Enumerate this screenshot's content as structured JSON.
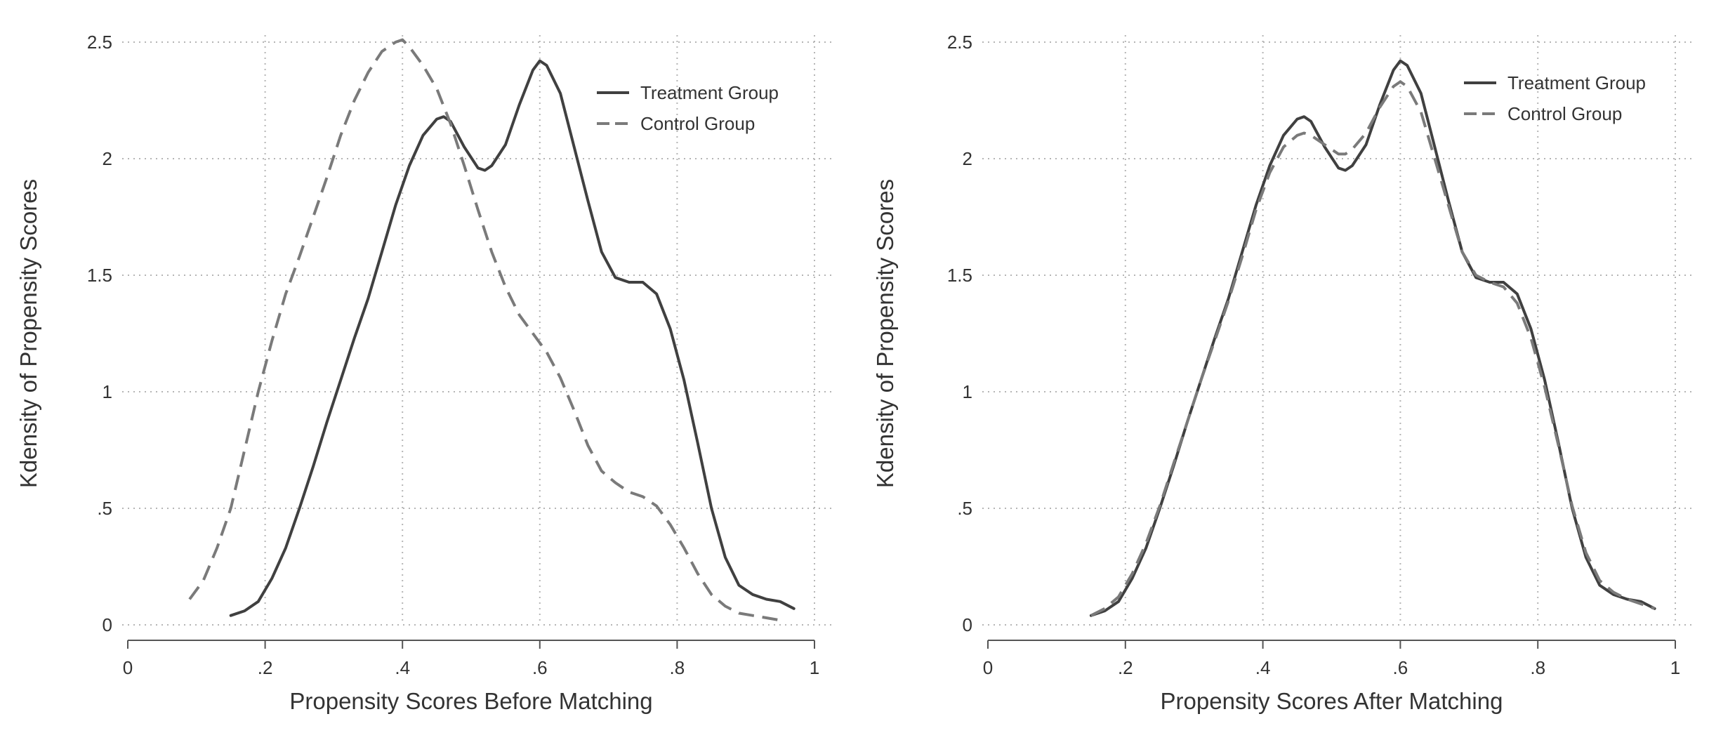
{
  "chart_data": [
    {
      "type": "line",
      "title": "",
      "xlabel": "Propensity Scores Before Matching",
      "ylabel": "Kdensity of Propensity Scores",
      "xlim": [
        0,
        1
      ],
      "ylim": [
        0,
        2.5
      ],
      "x_ticks": [
        0,
        0.2,
        0.4,
        0.6,
        0.8,
        1
      ],
      "x_tick_labels": [
        "0",
        ".2",
        ".4",
        ".6",
        ".8",
        "1"
      ],
      "y_ticks": [
        0,
        0.5,
        1,
        1.5,
        2,
        2.5
      ],
      "y_tick_labels": [
        "0",
        ".5",
        "1",
        "1.5",
        "2",
        "2.5"
      ],
      "grid": true,
      "legend_position": "top-right",
      "series": [
        {
          "name": "Treatment Group",
          "style": "solid",
          "color": "#404040",
          "points": [
            [
              0.15,
              0.04
            ],
            [
              0.17,
              0.06
            ],
            [
              0.19,
              0.1
            ],
            [
              0.21,
              0.2
            ],
            [
              0.23,
              0.33
            ],
            [
              0.25,
              0.5
            ],
            [
              0.27,
              0.68
            ],
            [
              0.29,
              0.87
            ],
            [
              0.31,
              1.05
            ],
            [
              0.33,
              1.23
            ],
            [
              0.35,
              1.4
            ],
            [
              0.37,
              1.6
            ],
            [
              0.39,
              1.8
            ],
            [
              0.41,
              1.97
            ],
            [
              0.43,
              2.1
            ],
            [
              0.45,
              2.17
            ],
            [
              0.46,
              2.18
            ],
            [
              0.47,
              2.16
            ],
            [
              0.49,
              2.05
            ],
            [
              0.51,
              1.96
            ],
            [
              0.52,
              1.95
            ],
            [
              0.53,
              1.97
            ],
            [
              0.55,
              2.06
            ],
            [
              0.57,
              2.23
            ],
            [
              0.59,
              2.38
            ],
            [
              0.6,
              2.42
            ],
            [
              0.61,
              2.4
            ],
            [
              0.63,
              2.28
            ],
            [
              0.65,
              2.05
            ],
            [
              0.67,
              1.82
            ],
            [
              0.69,
              1.6
            ],
            [
              0.71,
              1.49
            ],
            [
              0.73,
              1.47
            ],
            [
              0.75,
              1.47
            ],
            [
              0.77,
              1.42
            ],
            [
              0.79,
              1.27
            ],
            [
              0.81,
              1.05
            ],
            [
              0.83,
              0.78
            ],
            [
              0.85,
              0.5
            ],
            [
              0.87,
              0.29
            ],
            [
              0.89,
              0.17
            ],
            [
              0.91,
              0.13
            ],
            [
              0.93,
              0.11
            ],
            [
              0.95,
              0.1
            ],
            [
              0.97,
              0.07
            ]
          ]
        },
        {
          "name": "Control Group",
          "style": "dashed",
          "color": "#7a7a7a",
          "points": [
            [
              0.09,
              0.11
            ],
            [
              0.11,
              0.19
            ],
            [
              0.13,
              0.33
            ],
            [
              0.15,
              0.5
            ],
            [
              0.17,
              0.75
            ],
            [
              0.19,
              1.0
            ],
            [
              0.21,
              1.22
            ],
            [
              0.23,
              1.42
            ],
            [
              0.25,
              1.58
            ],
            [
              0.27,
              1.75
            ],
            [
              0.29,
              1.92
            ],
            [
              0.31,
              2.1
            ],
            [
              0.33,
              2.25
            ],
            [
              0.35,
              2.37
            ],
            [
              0.37,
              2.46
            ],
            [
              0.39,
              2.5
            ],
            [
              0.4,
              2.51
            ],
            [
              0.41,
              2.48
            ],
            [
              0.43,
              2.4
            ],
            [
              0.45,
              2.3
            ],
            [
              0.47,
              2.15
            ],
            [
              0.49,
              1.97
            ],
            [
              0.51,
              1.78
            ],
            [
              0.53,
              1.6
            ],
            [
              0.55,
              1.45
            ],
            [
              0.57,
              1.33
            ],
            [
              0.59,
              1.25
            ],
            [
              0.61,
              1.17
            ],
            [
              0.63,
              1.06
            ],
            [
              0.65,
              0.92
            ],
            [
              0.67,
              0.77
            ],
            [
              0.69,
              0.66
            ],
            [
              0.71,
              0.61
            ],
            [
              0.73,
              0.57
            ],
            [
              0.75,
              0.55
            ],
            [
              0.77,
              0.51
            ],
            [
              0.79,
              0.43
            ],
            [
              0.81,
              0.33
            ],
            [
              0.83,
              0.22
            ],
            [
              0.85,
              0.13
            ],
            [
              0.87,
              0.08
            ],
            [
              0.89,
              0.05
            ],
            [
              0.91,
              0.04
            ],
            [
              0.93,
              0.03
            ],
            [
              0.95,
              0.02
            ]
          ]
        }
      ]
    },
    {
      "type": "line",
      "title": "",
      "xlabel": "Propensity Scores After Matching",
      "ylabel": "Kdensity of Propensity Scores",
      "xlim": [
        0,
        1
      ],
      "ylim": [
        0,
        2.5
      ],
      "x_ticks": [
        0,
        0.2,
        0.4,
        0.6,
        0.8,
        1
      ],
      "x_tick_labels": [
        "0",
        ".2",
        ".4",
        ".6",
        ".8",
        "1"
      ],
      "y_ticks": [
        0,
        0.5,
        1,
        1.5,
        2,
        2.5
      ],
      "y_tick_labels": [
        "0",
        ".5",
        "1",
        "1.5",
        "2",
        "2.5"
      ],
      "grid": true,
      "legend_position": "top-right",
      "series": [
        {
          "name": "Treatment Group",
          "style": "solid",
          "color": "#404040",
          "points": [
            [
              0.15,
              0.04
            ],
            [
              0.17,
              0.06
            ],
            [
              0.19,
              0.1
            ],
            [
              0.21,
              0.2
            ],
            [
              0.23,
              0.33
            ],
            [
              0.25,
              0.5
            ],
            [
              0.27,
              0.68
            ],
            [
              0.29,
              0.87
            ],
            [
              0.31,
              1.05
            ],
            [
              0.33,
              1.23
            ],
            [
              0.35,
              1.4
            ],
            [
              0.37,
              1.6
            ],
            [
              0.39,
              1.8
            ],
            [
              0.41,
              1.97
            ],
            [
              0.43,
              2.1
            ],
            [
              0.45,
              2.17
            ],
            [
              0.46,
              2.18
            ],
            [
              0.47,
              2.16
            ],
            [
              0.49,
              2.05
            ],
            [
              0.51,
              1.96
            ],
            [
              0.52,
              1.95
            ],
            [
              0.53,
              1.97
            ],
            [
              0.55,
              2.06
            ],
            [
              0.57,
              2.23
            ],
            [
              0.59,
              2.38
            ],
            [
              0.6,
              2.42
            ],
            [
              0.61,
              2.4
            ],
            [
              0.63,
              2.28
            ],
            [
              0.65,
              2.05
            ],
            [
              0.67,
              1.82
            ],
            [
              0.69,
              1.6
            ],
            [
              0.71,
              1.49
            ],
            [
              0.73,
              1.47
            ],
            [
              0.75,
              1.47
            ],
            [
              0.77,
              1.42
            ],
            [
              0.79,
              1.27
            ],
            [
              0.81,
              1.05
            ],
            [
              0.83,
              0.78
            ],
            [
              0.85,
              0.5
            ],
            [
              0.87,
              0.29
            ],
            [
              0.89,
              0.17
            ],
            [
              0.91,
              0.13
            ],
            [
              0.93,
              0.11
            ],
            [
              0.95,
              0.1
            ],
            [
              0.97,
              0.07
            ]
          ]
        },
        {
          "name": "Control Group",
          "style": "dashed",
          "color": "#7a7a7a",
          "points": [
            [
              0.15,
              0.04
            ],
            [
              0.17,
              0.07
            ],
            [
              0.19,
              0.12
            ],
            [
              0.21,
              0.22
            ],
            [
              0.23,
              0.35
            ],
            [
              0.25,
              0.51
            ],
            [
              0.27,
              0.69
            ],
            [
              0.29,
              0.87
            ],
            [
              0.31,
              1.05
            ],
            [
              0.33,
              1.22
            ],
            [
              0.35,
              1.39
            ],
            [
              0.37,
              1.58
            ],
            [
              0.39,
              1.78
            ],
            [
              0.41,
              1.94
            ],
            [
              0.43,
              2.05
            ],
            [
              0.45,
              2.1
            ],
            [
              0.46,
              2.11
            ],
            [
              0.47,
              2.1
            ],
            [
              0.49,
              2.06
            ],
            [
              0.51,
              2.02
            ],
            [
              0.52,
              2.02
            ],
            [
              0.53,
              2.04
            ],
            [
              0.55,
              2.11
            ],
            [
              0.57,
              2.22
            ],
            [
              0.59,
              2.31
            ],
            [
              0.6,
              2.33
            ],
            [
              0.61,
              2.31
            ],
            [
              0.63,
              2.2
            ],
            [
              0.65,
              2.0
            ],
            [
              0.67,
              1.8
            ],
            [
              0.69,
              1.6
            ],
            [
              0.71,
              1.5
            ],
            [
              0.73,
              1.47
            ],
            [
              0.75,
              1.45
            ],
            [
              0.77,
              1.38
            ],
            [
              0.79,
              1.23
            ],
            [
              0.81,
              1.02
            ],
            [
              0.83,
              0.77
            ],
            [
              0.85,
              0.51
            ],
            [
              0.87,
              0.31
            ],
            [
              0.89,
              0.19
            ],
            [
              0.91,
              0.14
            ],
            [
              0.93,
              0.11
            ],
            [
              0.95,
              0.09
            ],
            [
              0.97,
              0.07
            ]
          ]
        }
      ]
    }
  ]
}
